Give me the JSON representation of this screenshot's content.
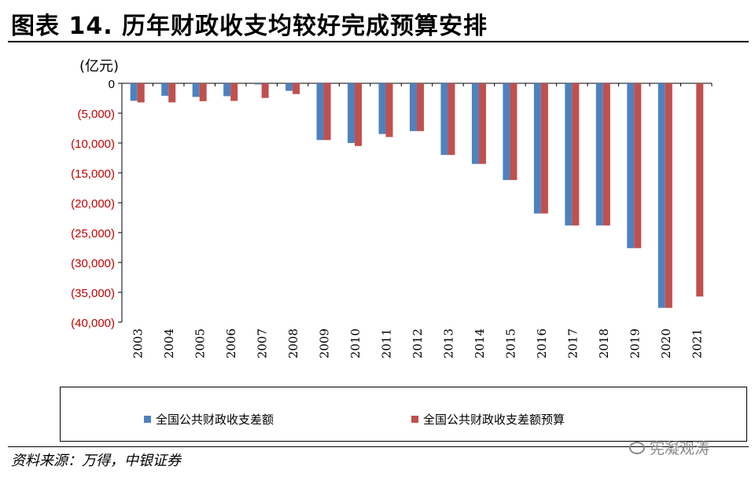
{
  "title": "图表 14. 历年财政收支均较好完成预算安排",
  "source": "资料来源：万得，中银证券",
  "watermark": "宪凝观涛",
  "colors": {
    "actual": "#4f81bd",
    "budget": "#c0504d",
    "negative_tick": "#c00000"
  },
  "chart_data": {
    "type": "bar",
    "unit_label": "(亿元)",
    "categories": [
      "2003",
      "2004",
      "2005",
      "2006",
      "2007",
      "2008",
      "2009",
      "2010",
      "2011",
      "2012",
      "2013",
      "2014",
      "2015",
      "2016",
      "2017",
      "2018",
      "2019",
      "2020",
      "2021"
    ],
    "series": [
      {
        "name": "全国公共财政收支差额",
        "values": [
          -2935,
          -2090,
          -2281,
          -2162,
          -200,
          -1262,
          -9500,
          -10000,
          -8500,
          -8000,
          -12000,
          -13500,
          -16200,
          -21800,
          -23800,
          -23800,
          -27600,
          -37600,
          null
        ]
      },
      {
        "name": "全国公共财政收支差额预算",
        "values": [
          -3198,
          -3198,
          -3000,
          -2950,
          -2450,
          -1800,
          -9500,
          -10500,
          -9000,
          -8000,
          -12000,
          -13500,
          -16200,
          -21800,
          -23800,
          -23800,
          -27600,
          -37600,
          -35700
        ]
      }
    ],
    "yticks": [
      0,
      -5000,
      -10000,
      -15000,
      -20000,
      -25000,
      -30000,
      -35000,
      -40000
    ],
    "ytick_labels": [
      "0",
      "(5,000)",
      "(10,000)",
      "(15,000)",
      "(20,000)",
      "(25,000)",
      "(30,000)",
      "(35,000)",
      "(40,000)"
    ],
    "ylim": [
      -40000,
      0
    ],
    "grid": false,
    "legend_position": "bottom"
  }
}
